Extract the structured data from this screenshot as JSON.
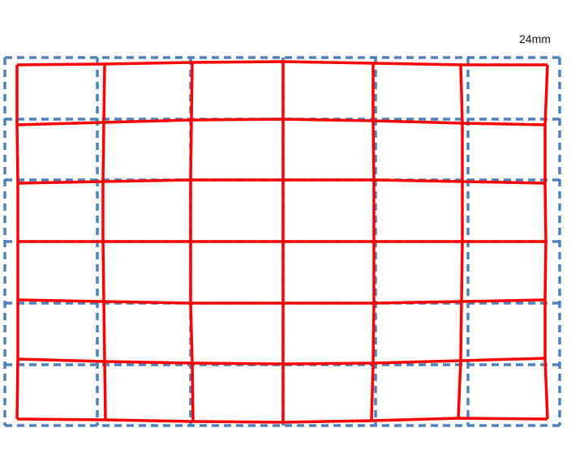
{
  "label": "24mm",
  "colors": {
    "reference_grid": "#4f81bd",
    "distorted_grid": "#ff0000"
  }
}
